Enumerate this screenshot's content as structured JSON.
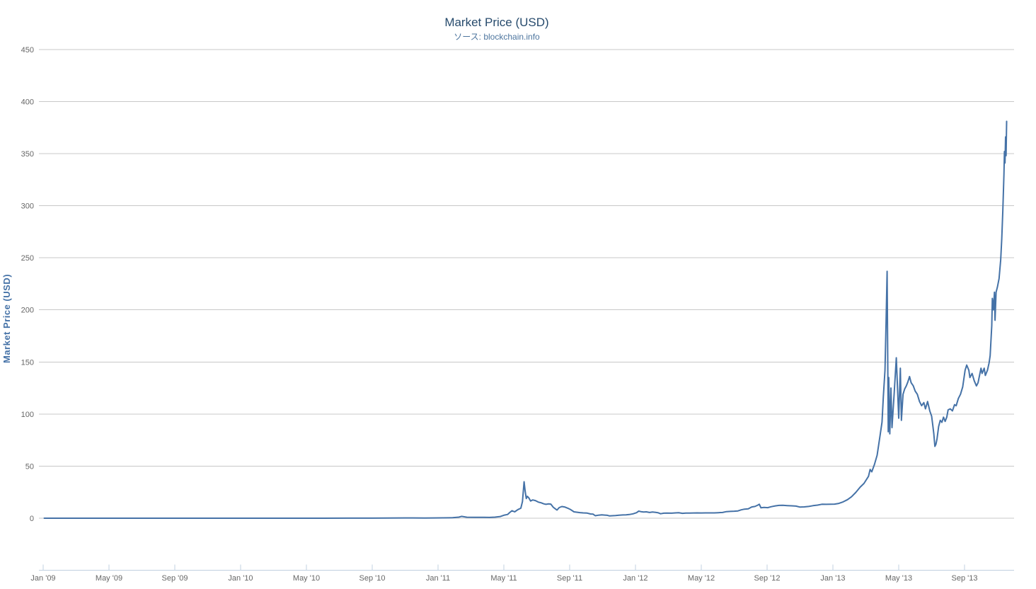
{
  "chart_data": {
    "type": "line",
    "title": "Market Price (USD)",
    "subtitle": "ソース: blockchain.info",
    "xlabel": "",
    "ylabel": "Market Price (USD)",
    "ylim": [
      -50,
      450
    ],
    "yticks": [
      0,
      50,
      100,
      150,
      200,
      250,
      300,
      350,
      400,
      450
    ],
    "x_tick_labels": [
      "Jan '09",
      "May '09",
      "Sep '09",
      "Jan '10",
      "May '10",
      "Sep '10",
      "Jan '11",
      "May '11",
      "Sep '11",
      "Jan '12",
      "May '12",
      "Sep '12",
      "Jan '13",
      "May '13",
      "Sep '13"
    ],
    "x_tick_months": [
      0,
      4,
      8,
      12,
      16,
      20,
      24,
      28,
      32,
      36,
      40,
      44,
      48,
      52,
      56
    ],
    "grid": "horizontal-only",
    "legend": "none",
    "series": [
      {
        "name": "Market Price (USD)",
        "color": "#4572A7",
        "points": [
          [
            "2009-01-03",
            0
          ],
          [
            "2009-03-01",
            0
          ],
          [
            "2009-06-01",
            0
          ],
          [
            "2009-09-01",
            0
          ],
          [
            "2009-12-01",
            0
          ],
          [
            "2010-03-01",
            0
          ],
          [
            "2010-06-01",
            0
          ],
          [
            "2010-07-18",
            0.08
          ],
          [
            "2010-09-01",
            0.06
          ],
          [
            "2010-11-01",
            0.29
          ],
          [
            "2010-11-15",
            0.25
          ],
          [
            "2010-12-07",
            0.21
          ],
          [
            "2010-12-25",
            0.25
          ],
          [
            "2011-01-10",
            0.32
          ],
          [
            "2011-01-28",
            0.45
          ],
          [
            "2011-02-09",
            1.05
          ],
          [
            "2011-02-14",
            1.8
          ],
          [
            "2011-02-24",
            0.95
          ],
          [
            "2011-03-10",
            0.9
          ],
          [
            "2011-03-25",
            0.86
          ],
          [
            "2011-04-05",
            0.75
          ],
          [
            "2011-04-15",
            1.05
          ],
          [
            "2011-04-25",
            1.65
          ],
          [
            "2011-05-02",
            3.0
          ],
          [
            "2011-05-08",
            3.6
          ],
          [
            "2011-05-12",
            5.5
          ],
          [
            "2011-05-16",
            7.2
          ],
          [
            "2011-05-21",
            6.1
          ],
          [
            "2011-05-27",
            8.3
          ],
          [
            "2011-06-02",
            9.6
          ],
          [
            "2011-06-05",
            16.0
          ],
          [
            "2011-06-08",
            35.0
          ],
          [
            "2011-06-10",
            26.0
          ],
          [
            "2011-06-12",
            18.9
          ],
          [
            "2011-06-14",
            21.0
          ],
          [
            "2011-06-17",
            19.3
          ],
          [
            "2011-06-20",
            16.5
          ],
          [
            "2011-06-24",
            17.5
          ],
          [
            "2011-06-29",
            16.9
          ],
          [
            "2011-07-04",
            15.4
          ],
          [
            "2011-07-09",
            14.8
          ],
          [
            "2011-07-14",
            13.8
          ],
          [
            "2011-07-18",
            13.3
          ],
          [
            "2011-07-23",
            13.7
          ],
          [
            "2011-07-27",
            13.5
          ],
          [
            "2011-08-01",
            10.5
          ],
          [
            "2011-08-05",
            9.0
          ],
          [
            "2011-08-08",
            7.8
          ],
          [
            "2011-08-12",
            10.2
          ],
          [
            "2011-08-17",
            11.2
          ],
          [
            "2011-08-22",
            10.8
          ],
          [
            "2011-08-28",
            9.6
          ],
          [
            "2011-09-03",
            8.2
          ],
          [
            "2011-09-09",
            6.1
          ],
          [
            "2011-09-14",
            5.8
          ],
          [
            "2011-09-20",
            5.4
          ],
          [
            "2011-09-26",
            5.1
          ],
          [
            "2011-10-03",
            4.9
          ],
          [
            "2011-10-09",
            4.1
          ],
          [
            "2011-10-14",
            3.9
          ],
          [
            "2011-10-18",
            2.4
          ],
          [
            "2011-10-24",
            2.9
          ],
          [
            "2011-10-30",
            3.2
          ],
          [
            "2011-11-05",
            3.0
          ],
          [
            "2011-11-10",
            2.8
          ],
          [
            "2011-11-14",
            2.2
          ],
          [
            "2011-11-19",
            2.4
          ],
          [
            "2011-11-25",
            2.5
          ],
          [
            "2011-12-01",
            2.9
          ],
          [
            "2011-12-08",
            3.1
          ],
          [
            "2011-12-14",
            3.2
          ],
          [
            "2011-12-20",
            3.5
          ],
          [
            "2011-12-27",
            4.2
          ],
          [
            "2012-01-03",
            5.3
          ],
          [
            "2012-01-07",
            6.8
          ],
          [
            "2012-01-11",
            6.3
          ],
          [
            "2012-01-16",
            5.9
          ],
          [
            "2012-01-21",
            6.1
          ],
          [
            "2012-01-27",
            5.5
          ],
          [
            "2012-02-02",
            5.9
          ],
          [
            "2012-02-08",
            5.6
          ],
          [
            "2012-02-12",
            5.3
          ],
          [
            "2012-02-17",
            4.3
          ],
          [
            "2012-02-23",
            4.8
          ],
          [
            "2012-02-29",
            4.9
          ],
          [
            "2012-03-07",
            4.8
          ],
          [
            "2012-03-14",
            5.1
          ],
          [
            "2012-03-20",
            5.2
          ],
          [
            "2012-03-27",
            4.7
          ],
          [
            "2012-04-03",
            4.9
          ],
          [
            "2012-04-10",
            4.9
          ],
          [
            "2012-04-17",
            5.0
          ],
          [
            "2012-04-24",
            5.1
          ],
          [
            "2012-05-01",
            5.0
          ],
          [
            "2012-05-09",
            5.1
          ],
          [
            "2012-05-17",
            5.1
          ],
          [
            "2012-05-25",
            5.1
          ],
          [
            "2012-06-02",
            5.3
          ],
          [
            "2012-06-10",
            5.5
          ],
          [
            "2012-06-17",
            6.3
          ],
          [
            "2012-06-24",
            6.5
          ],
          [
            "2012-07-01",
            6.7
          ],
          [
            "2012-07-08",
            7.0
          ],
          [
            "2012-07-14",
            8.0
          ],
          [
            "2012-07-20",
            8.7
          ],
          [
            "2012-07-27",
            9.0
          ],
          [
            "2012-08-03",
            10.8
          ],
          [
            "2012-08-09",
            11.3
          ],
          [
            "2012-08-14",
            12.5
          ],
          [
            "2012-08-17",
            13.4
          ],
          [
            "2012-08-20",
            10.0
          ],
          [
            "2012-08-26",
            10.3
          ],
          [
            "2012-09-02",
            10.1
          ],
          [
            "2012-09-09",
            11.1
          ],
          [
            "2012-09-16",
            11.8
          ],
          [
            "2012-09-23",
            12.3
          ],
          [
            "2012-09-30",
            12.4
          ],
          [
            "2012-10-08",
            12.1
          ],
          [
            "2012-10-16",
            11.9
          ],
          [
            "2012-10-24",
            11.6
          ],
          [
            "2012-11-01",
            10.7
          ],
          [
            "2012-11-09",
            10.9
          ],
          [
            "2012-11-17",
            11.3
          ],
          [
            "2012-11-25",
            12.0
          ],
          [
            "2012-12-03",
            12.6
          ],
          [
            "2012-12-11",
            13.4
          ],
          [
            "2012-12-19",
            13.3
          ],
          [
            "2012-12-27",
            13.4
          ],
          [
            "2013-01-04",
            13.5
          ],
          [
            "2013-01-12",
            14.2
          ],
          [
            "2013-01-20",
            15.7
          ],
          [
            "2013-01-28",
            17.8
          ],
          [
            "2013-02-05",
            20.6
          ],
          [
            "2013-02-13",
            24.8
          ],
          [
            "2013-02-21",
            29.8
          ],
          [
            "2013-02-28",
            33.4
          ],
          [
            "2013-03-06",
            40.2
          ],
          [
            "2013-03-09",
            46.8
          ],
          [
            "2013-03-12",
            44.5
          ],
          [
            "2013-03-17",
            51.6
          ],
          [
            "2013-03-22",
            60.5
          ],
          [
            "2013-03-27",
            78.2
          ],
          [
            "2013-03-31",
            92.2
          ],
          [
            "2013-04-03",
            117
          ],
          [
            "2013-04-06",
            142
          ],
          [
            "2013-04-08",
            187
          ],
          [
            "2013-04-10",
            237
          ],
          [
            "2013-04-11",
            160
          ],
          [
            "2013-04-12",
            83
          ],
          [
            "2013-04-13",
            135
          ],
          [
            "2013-04-15",
            81
          ],
          [
            "2013-04-17",
            125
          ],
          [
            "2013-04-19",
            87
          ],
          [
            "2013-04-23",
            120
          ],
          [
            "2013-04-27",
            154
          ],
          [
            "2013-05-01",
            96
          ],
          [
            "2013-05-04",
            144
          ],
          [
            "2013-05-06",
            94
          ],
          [
            "2013-05-09",
            119
          ],
          [
            "2013-05-12",
            124
          ],
          [
            "2013-05-15",
            127
          ],
          [
            "2013-05-18",
            131
          ],
          [
            "2013-05-21",
            136
          ],
          [
            "2013-05-24",
            130
          ],
          [
            "2013-05-28",
            127
          ],
          [
            "2013-06-01",
            122
          ],
          [
            "2013-06-05",
            119
          ],
          [
            "2013-06-09",
            112
          ],
          [
            "2013-06-13",
            108
          ],
          [
            "2013-06-17",
            111
          ],
          [
            "2013-06-20",
            105
          ],
          [
            "2013-06-24",
            112
          ],
          [
            "2013-06-28",
            103
          ],
          [
            "2013-07-01",
            98
          ],
          [
            "2013-07-03",
            90
          ],
          [
            "2013-07-05",
            81
          ],
          [
            "2013-07-07",
            69
          ],
          [
            "2013-07-09",
            71
          ],
          [
            "2013-07-11",
            76
          ],
          [
            "2013-07-14",
            88
          ],
          [
            "2013-07-17",
            94
          ],
          [
            "2013-07-20",
            92
          ],
          [
            "2013-07-23",
            97
          ],
          [
            "2013-07-26",
            93
          ],
          [
            "2013-07-29",
            97
          ],
          [
            "2013-08-01",
            104
          ],
          [
            "2013-08-05",
            105
          ],
          [
            "2013-08-09",
            103
          ],
          [
            "2013-08-13",
            109
          ],
          [
            "2013-08-16",
            108
          ],
          [
            "2013-08-20",
            115
          ],
          [
            "2013-08-24",
            119
          ],
          [
            "2013-08-28",
            126
          ],
          [
            "2013-09-02",
            142
          ],
          [
            "2013-09-05",
            147
          ],
          [
            "2013-09-09",
            142
          ],
          [
            "2013-09-11",
            135
          ],
          [
            "2013-09-15",
            139
          ],
          [
            "2013-09-19",
            132
          ],
          [
            "2013-09-23",
            127
          ],
          [
            "2013-09-26",
            130
          ],
          [
            "2013-10-01",
            144
          ],
          [
            "2013-10-03",
            139
          ],
          [
            "2013-10-07",
            144
          ],
          [
            "2013-10-09",
            137
          ],
          [
            "2013-10-13",
            142
          ],
          [
            "2013-10-16",
            149
          ],
          [
            "2013-10-18",
            156
          ],
          [
            "2013-10-21",
            185
          ],
          [
            "2013-10-22",
            211
          ],
          [
            "2013-10-24",
            200
          ],
          [
            "2013-10-26",
            217
          ],
          [
            "2013-10-27",
            190
          ],
          [
            "2013-10-29",
            217
          ],
          [
            "2013-11-01",
            222
          ],
          [
            "2013-11-04",
            230
          ],
          [
            "2013-11-07",
            248
          ],
          [
            "2013-11-09",
            268
          ],
          [
            "2013-11-11",
            295
          ],
          [
            "2013-11-13",
            330
          ],
          [
            "2013-11-14",
            352
          ],
          [
            "2013-11-15",
            341
          ],
          [
            "2013-11-16",
            366
          ],
          [
            "2013-11-17",
            348
          ],
          [
            "2013-11-18",
            381
          ]
        ]
      }
    ]
  },
  "colors": {
    "series": "#4572A7",
    "title": "#274b6d",
    "subtitle": "#4d759e",
    "yaxis_title": "#4572A7",
    "tick_labels": "#666666",
    "grid_line": "#c8c8c8",
    "axis_line": "#c0d0e0",
    "background": "#ffffff"
  }
}
